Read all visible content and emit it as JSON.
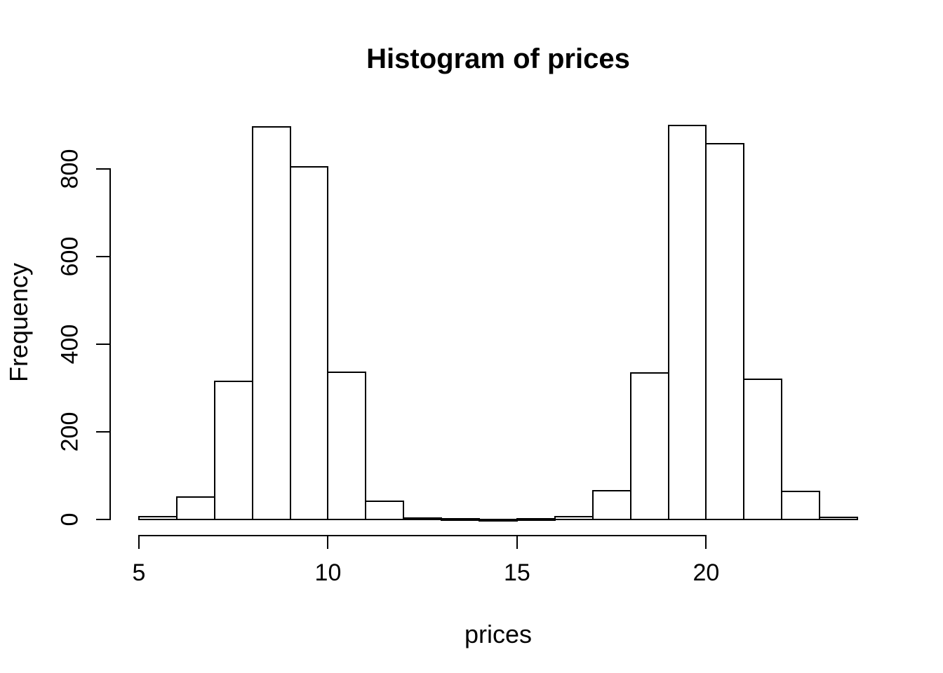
{
  "chart_data": {
    "type": "bar",
    "subtype": "histogram",
    "title": "Histogram of prices",
    "xlabel": "prices",
    "ylabel": "Frequency",
    "bin_edges": [
      5,
      6,
      7,
      8,
      9,
      10,
      11,
      12,
      13,
      14,
      15,
      16,
      17,
      18,
      19,
      20,
      21,
      22,
      23,
      24
    ],
    "counts": [
      6,
      51,
      315,
      896,
      805,
      336,
      42,
      3,
      1,
      0,
      1,
      6,
      66,
      334,
      899,
      858,
      320,
      64,
      5
    ],
    "x_ticks": [
      5,
      10,
      15,
      20
    ],
    "y_ticks": [
      0,
      200,
      400,
      600,
      800
    ],
    "xlim": [
      5,
      24
    ],
    "ylim": [
      0,
      900
    ],
    "grid": false,
    "legend_position": "none",
    "bar_fill": "#ffffff",
    "bar_stroke": "#000000",
    "background": "#ffffff"
  }
}
